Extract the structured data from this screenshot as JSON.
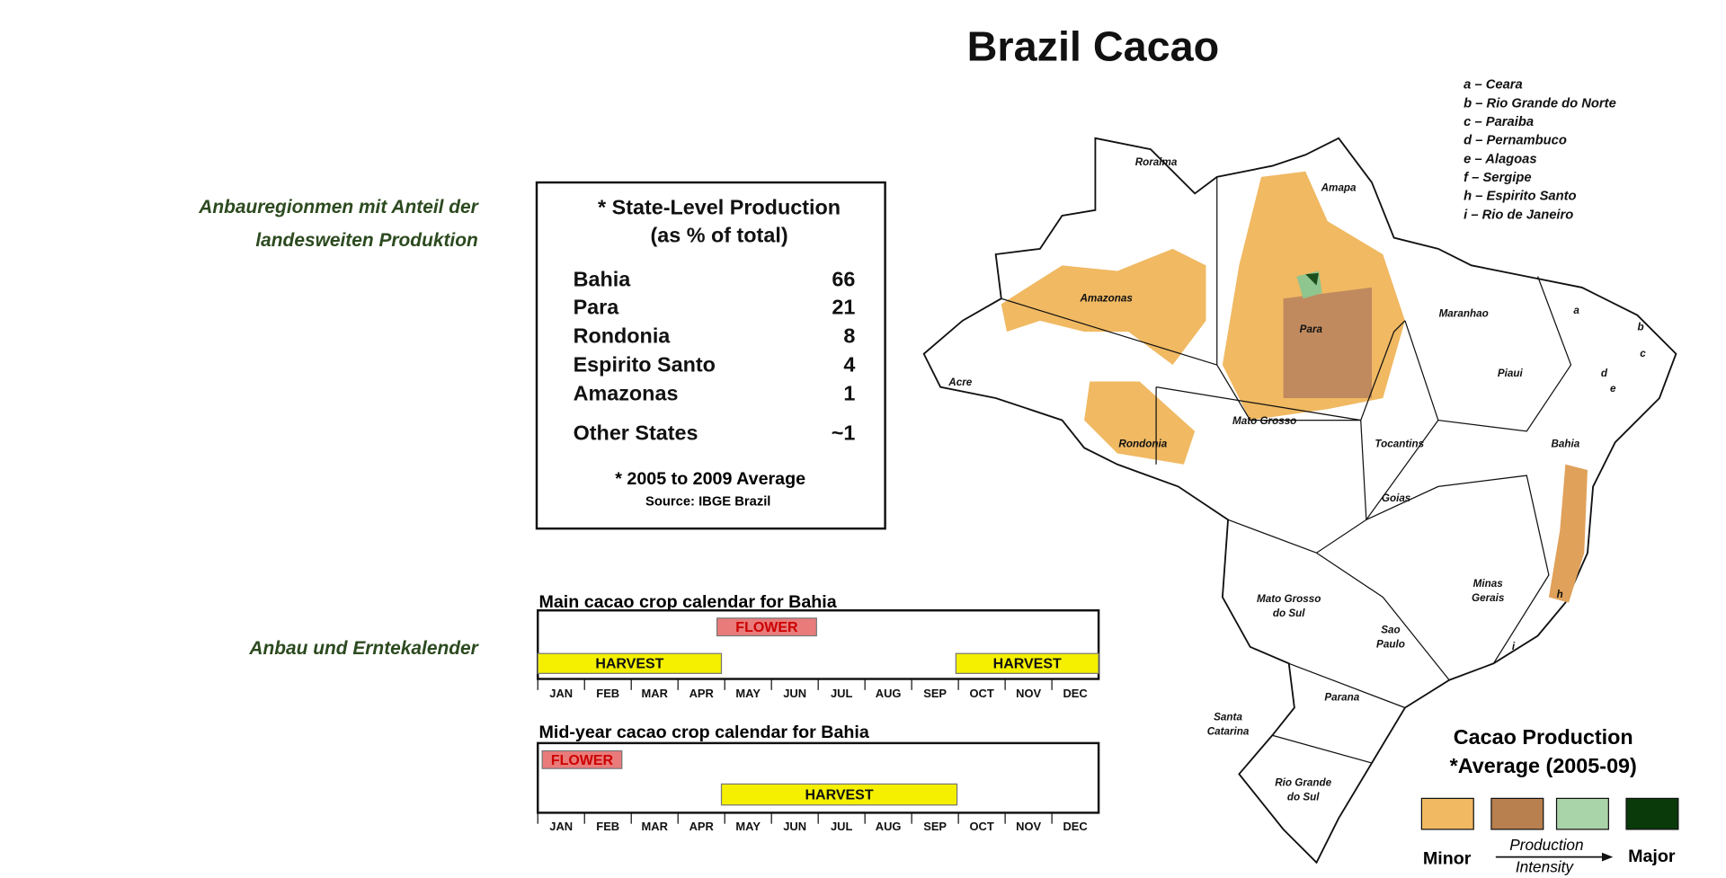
{
  "title": "Brazil Cacao",
  "sidebar": {
    "region_label": [
      "Anbauregionmen mit Anteil der",
      "landesweiten Produktion"
    ],
    "calendar_label": "Anbau und Erntekalender"
  },
  "production_table": {
    "title": [
      "* State-Level Production",
      "(as % of total)"
    ],
    "rows": [
      [
        "Bahia",
        66
      ],
      [
        "Para",
        21
      ],
      [
        "Rondonia",
        8
      ],
      [
        "Espirito Santo",
        4
      ],
      [
        "Amazonas",
        1
      ],
      [
        "Other States",
        "~1"
      ]
    ],
    "footnote": "* 2005 to 2009 Average",
    "source": "Source: IBGE Brazil"
  },
  "months": [
    "JAN",
    "FEB",
    "MAR",
    "APR",
    "MAY",
    "JUN",
    "JUL",
    "AUG",
    "SEP",
    "OCT",
    "NOV",
    "DEC"
  ],
  "calendars": [
    {
      "title": "Main cacao crop calendar for Bahia",
      "bars": [
        {
          "label": "FLOWER"
        },
        {
          "label": "HARVEST"
        },
        {
          "label": "HARVEST"
        }
      ]
    },
    {
      "title": "Mid-year cacao crop calendar for Bahia",
      "bars": [
        {
          "label": "FLOWER"
        },
        {
          "label": "HARVEST"
        }
      ]
    }
  ],
  "map": {
    "states": [
      [
        "Roraima"
      ],
      [
        "Amapa"
      ],
      [
        "Amazonas"
      ],
      [
        "Para"
      ],
      [
        "Maranhao"
      ],
      [
        "Acre"
      ],
      [
        "Piaui"
      ],
      [
        "Rondonia"
      ],
      [
        "Mato Grosso"
      ],
      [
        "Tocantins"
      ],
      [
        "Bahia"
      ],
      [
        "Goias"
      ],
      [
        "Minas",
        "Gerais"
      ],
      [
        "Mato Grosso",
        "do Sul"
      ],
      [
        "Sao",
        "Paulo"
      ],
      [
        "Parana"
      ],
      [
        "Santa",
        "Catarina"
      ],
      [
        "Rio Grande",
        "do Sul"
      ],
      [
        "a"
      ],
      [
        "b"
      ],
      [
        "c"
      ],
      [
        "d"
      ],
      [
        "e"
      ],
      [
        "h"
      ],
      [
        "i"
      ]
    ],
    "key": [
      "a – Ceara",
      "b – Rio Grande do Norte",
      "c – Paraiba",
      "d – Pernambuco",
      "e – Alagoas",
      "f – Sergipe",
      "h – Espirito Santo",
      "i – Rio de Janeiro"
    ]
  },
  "legend": {
    "title": "Cacao Production",
    "subtitle": "*Average (2005-09)",
    "minor": "Minor",
    "major": "Major",
    "axis": [
      "Production",
      "Intensity"
    ]
  }
}
